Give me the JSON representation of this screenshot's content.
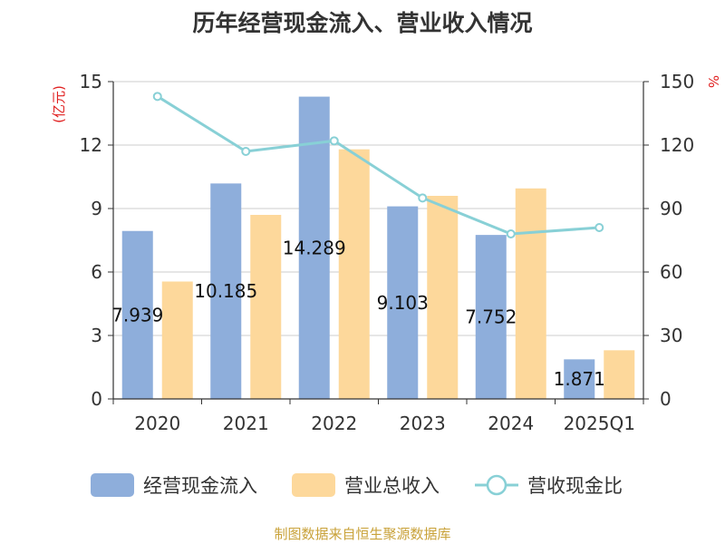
{
  "chart_data": {
    "type": "bar",
    "title": "历年经营现金流入、营业收入情况",
    "categories": [
      "2020",
      "2021",
      "2022",
      "2023",
      "2024",
      "2025Q1"
    ],
    "series": [
      {
        "name": "经营现金流入",
        "kind": "bar",
        "axis": "left",
        "color": "#8eaedb",
        "values": [
          7.939,
          10.185,
          14.289,
          9.103,
          7.752,
          1.871
        ],
        "labels": [
          "7.939",
          "10.185",
          "14.289",
          "9.103",
          "7.752",
          "1.871"
        ]
      },
      {
        "name": "营业总收入",
        "kind": "bar",
        "axis": "left",
        "color": "#fdd89b",
        "values": [
          5.55,
          8.7,
          11.8,
          9.6,
          9.95,
          2.3
        ]
      },
      {
        "name": "营收现金比",
        "kind": "line",
        "axis": "right",
        "color": "#88d0d6",
        "values": [
          143,
          117,
          122,
          95,
          78,
          81
        ]
      }
    ],
    "y_left": {
      "label": "(亿元)",
      "min": 0,
      "max": 15,
      "ticks": [
        "0",
        "3",
        "6",
        "9",
        "12",
        "15"
      ]
    },
    "y_right": {
      "label": "%",
      "min": 0,
      "max": 150,
      "ticks": [
        "0",
        "30",
        "60",
        "90",
        "120",
        "150"
      ]
    },
    "grid": true,
    "legend_position": "bottom"
  },
  "source": "制图数据来自恒生聚源数据库"
}
